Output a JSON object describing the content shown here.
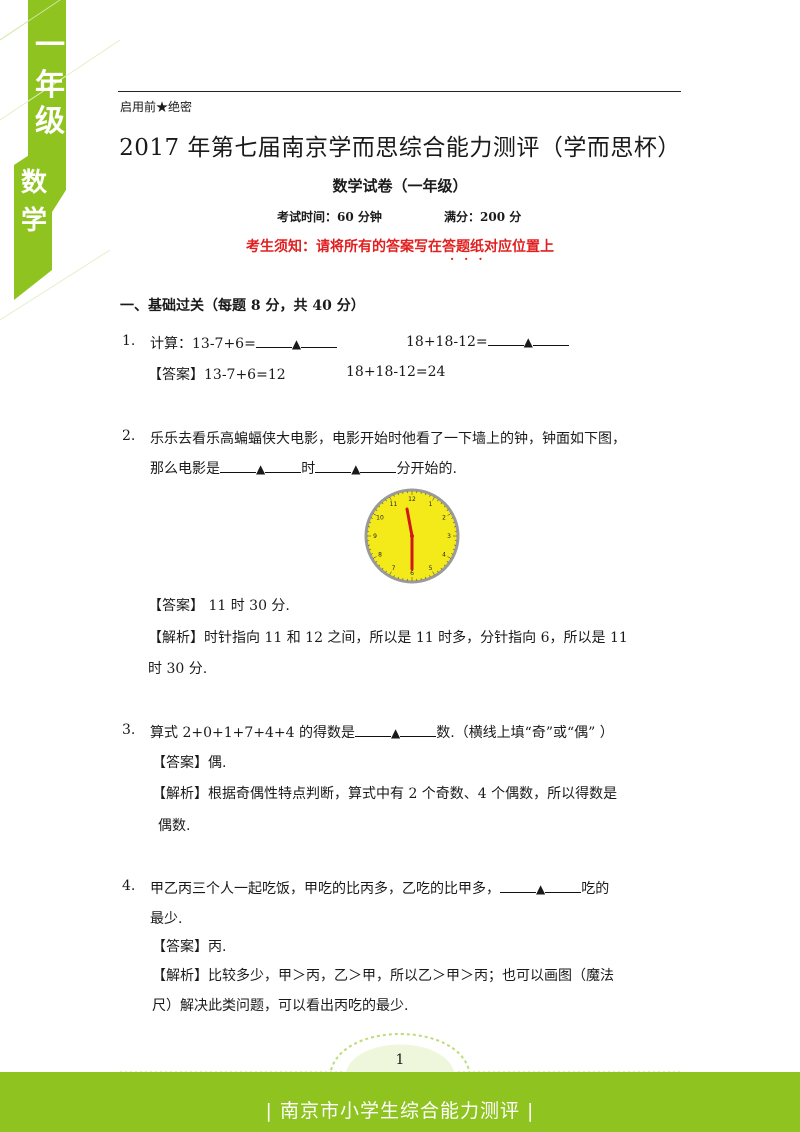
{
  "banner": {
    "grade_chars": [
      "一",
      "年",
      "级"
    ],
    "subject_chars": [
      "数",
      "学"
    ],
    "accent_color": "#8fc31f"
  },
  "header": {
    "secret_mark": "启用前★绝密",
    "title": "2017 年第七届南京学而思综合能力测评（学而思杯）",
    "subtitle": "数学试卷（一年级）",
    "time": "考试时间：60 分钟",
    "score": "满分：200 分",
    "notice": "考生须知：请将所有的答案写在答题纸对应位置上",
    "notice_dots": "···"
  },
  "section1": {
    "title": "一、基础过关（每题 8 分，共 40 分）"
  },
  "questions": {
    "q1": {
      "num": "1.",
      "prefix": "计算：13-7+6=",
      "tri": "▲",
      "expr2": "18+18-12=",
      "answer_tag": "【答案】",
      "answer": "13-7+6=12",
      "answer2": "18+18-12=24"
    },
    "q2": {
      "num": "2.",
      "line1": "乐乐去看乐高蝙蝠侠大电影，电影开始时他看了一下墙上的钟，钟面如下图，",
      "line2_a": "那么电影是",
      "tri": "▲",
      "line2_b": "时",
      "line2_c": "分开始的.",
      "answer_tag": "【答案】",
      "answer": " 11 时  30 分.",
      "analysis_tag": "【解析】",
      "analysis1": "时针指向 11 和 12 之间，所以是 11 时多，分针指向 6，所以是 11",
      "analysis2": "时 30 分.",
      "clock_numbers": [
        "12",
        "1",
        "2",
        "3",
        "4",
        "5",
        "6",
        "7",
        "8",
        "9",
        "10",
        "11"
      ]
    },
    "q3": {
      "num": "3.",
      "a": "算式 2+0+1+7+4+4 的得数是",
      "tri": "▲",
      "b": "数.（横线上填“奇”或“偶” ）",
      "answer_tag": "【答案】",
      "answer": "偶.",
      "analysis_tag": "【解析】",
      "analysis1": "根据奇偶性特点判断，算式中有 2 个奇数、4 个偶数，所以得数是",
      "analysis2": "偶数."
    },
    "q4": {
      "num": "4.",
      "a": "甲乙丙三个人一起吃饭，甲吃的比丙多，乙吃的比甲多，",
      "tri": "▲",
      "b": "吃的",
      "line2": "最少.",
      "answer_tag": "【答案】",
      "answer": "丙.",
      "analysis_tag": "【解析】",
      "analysis1": "比较多少，甲＞丙，乙＞甲，所以乙＞甲＞丙；也可以画图（魔法",
      "analysis2": "尺）解决此类问题，可以看出丙吃的最少."
    }
  },
  "footer": {
    "page_number": "1",
    "text": "| 南京市小学生综合能力测评 |"
  }
}
